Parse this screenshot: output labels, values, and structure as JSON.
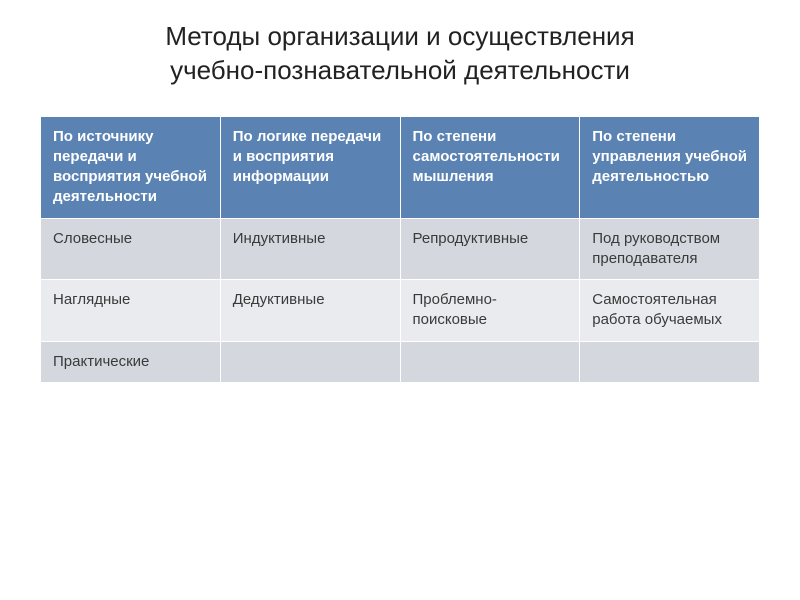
{
  "title_line1": "Методы организации и осуществления",
  "title_line2": "учебно-познавательной деятельности",
  "table": {
    "header_bg": "#5a82b3",
    "header_fg": "#ffffff",
    "row_bg_a": "#d4d8de",
    "row_bg_b": "#e9ebee",
    "cell_fg": "#3a3a3a",
    "border_color": "#ffffff",
    "font_size": 15,
    "columns": [
      "По источнику передачи  и восприятия учебной деятельности",
      "По логике передачи и восприятия информации",
      "По степени самостоятельности мышления",
      "По степени управления учебной деятельностью"
    ],
    "rows": [
      [
        "Словесные",
        "Индуктивные",
        "Репродуктивные",
        "Под руководством преподавателя"
      ],
      [
        "Наглядные",
        "Дедуктивные",
        "Проблемно-поисковые",
        "Самостоятельная работа обучаемых"
      ],
      [
        "Практические",
        "",
        "",
        ""
      ]
    ]
  }
}
